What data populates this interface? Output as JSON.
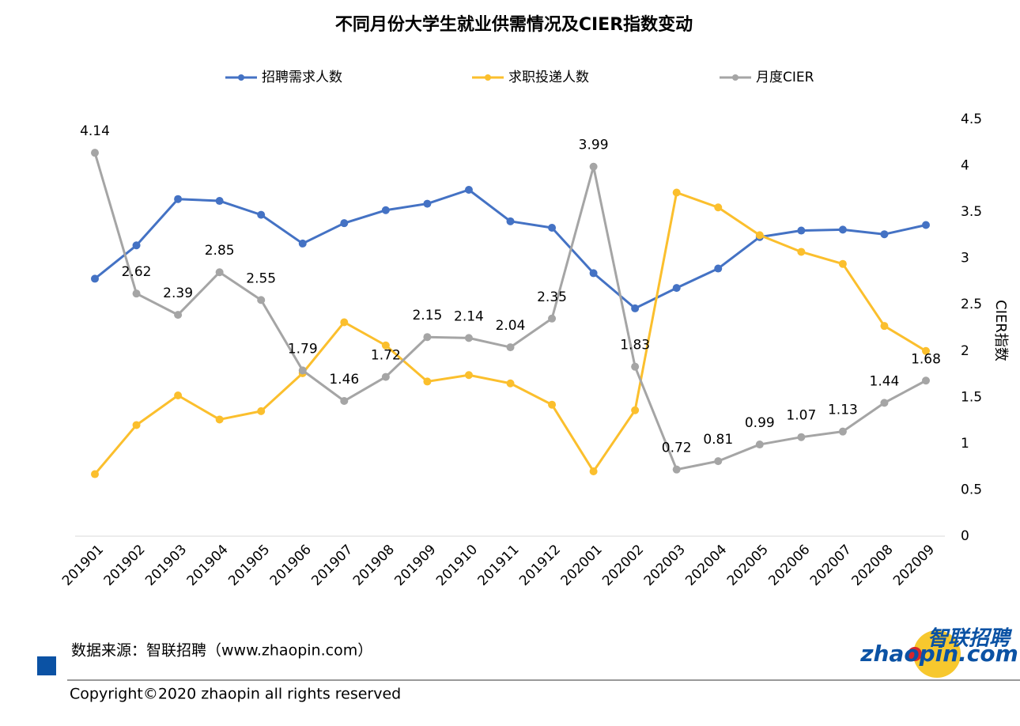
{
  "chart_data": {
    "type": "line",
    "title": "不同月份大学生就业供需情况及CIER指数变动",
    "categories": [
      "201901",
      "201902",
      "201903",
      "201904",
      "201905",
      "201906",
      "201907",
      "201908",
      "201909",
      "201910",
      "201911",
      "201912",
      "202001",
      "202002",
      "202003",
      "202004",
      "202005",
      "202006",
      "202007",
      "202008",
      "202009"
    ],
    "series": [
      {
        "name": "招聘需求人数",
        "color": "#4472c4",
        "values": [
          2.78,
          3.14,
          3.64,
          3.62,
          3.47,
          3.16,
          3.38,
          3.52,
          3.59,
          3.74,
          3.4,
          3.33,
          2.84,
          2.46,
          2.68,
          2.89,
          3.23,
          3.3,
          3.31,
          3.26,
          3.36
        ]
      },
      {
        "name": "求职投递人数",
        "color": "#fbbf2d",
        "values": [
          0.67,
          1.2,
          1.52,
          1.26,
          1.35,
          1.76,
          2.31,
          2.06,
          1.67,
          1.74,
          1.65,
          1.42,
          0.7,
          1.36,
          3.71,
          3.55,
          3.25,
          3.07,
          2.94,
          2.27,
          2.0
        ]
      },
      {
        "name": "月度CIER",
        "color": "#a5a5a5",
        "labels": true,
        "values": [
          4.14,
          2.62,
          2.39,
          2.85,
          2.55,
          1.79,
          1.46,
          1.72,
          2.15,
          2.14,
          2.04,
          2.35,
          3.99,
          1.83,
          0.72,
          0.81,
          0.99,
          1.07,
          1.13,
          1.44,
          1.68
        ]
      }
    ],
    "ylabel": "CIER指数",
    "ylim": [
      0,
      4.5
    ],
    "yticks": [
      0,
      0.5,
      1,
      1.5,
      2,
      2.5,
      3,
      3.5,
      4,
      4.5
    ],
    "legend": "top"
  },
  "footer": {
    "source": "数据来源：智联招聘（www.zhaopin.com）",
    "copyright": "Copyright©2020 zhaopin all rights reserved",
    "logo_cn": "智联招聘",
    "logo_en": "zhaopin.com"
  }
}
